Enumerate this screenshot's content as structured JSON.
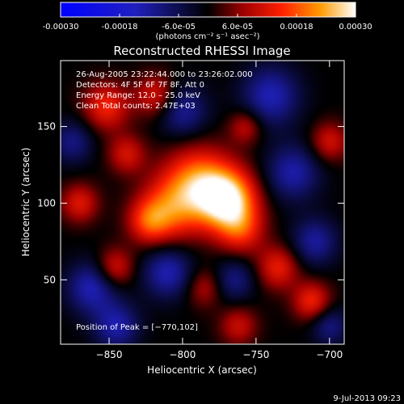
{
  "figure": {
    "footer_date": "9-Jul-2013 09:23"
  },
  "colorbar": {
    "min": -0.0003,
    "max": 0.0003,
    "tick_labels": [
      "-0.00030",
      "-0.00018",
      "-6.0e-05",
      "6.0e-05",
      "0.00018",
      "0.00030"
    ],
    "tick_values": [
      -0.0003,
      -0.00018,
      -6e-05,
      6e-05,
      0.00018,
      0.0003
    ],
    "unit_text": "(photons cm⁻² s⁻¹ asec⁻²)",
    "stops": [
      {
        "v": 0.0,
        "color": "#0000ff"
      },
      {
        "v": 0.25,
        "color": "#2020c0"
      },
      {
        "v": 0.5,
        "color": "#000000"
      },
      {
        "v": 0.62,
        "color": "#a00000"
      },
      {
        "v": 0.75,
        "color": "#ff2000"
      },
      {
        "v": 0.88,
        "color": "#ff9a00"
      },
      {
        "v": 1.0,
        "color": "#ffffff"
      }
    ]
  },
  "chart_data": {
    "type": "heatmap",
    "title": "Reconstructed RHESSI Image",
    "xlabel": "Heliocentric X (arcsec)",
    "ylabel": "Heliocentric Y (arcsec)",
    "xlim": [
      -883,
      -690
    ],
    "ylim": [
      8,
      193
    ],
    "x_ticks": [
      -850,
      -800,
      -750,
      -700
    ],
    "x_tick_labels": [
      "−850",
      "−800",
      "−750",
      "−700"
    ],
    "y_ticks": [
      50,
      100,
      150
    ],
    "y_tick_labels": [
      "50",
      "100",
      "150"
    ],
    "info_lines": [
      "26-Aug-2005 23:22:44.000 to 23:26:02.000",
      "Detectors: 4F 5F 6F 7F 8F, Att 0",
      "Energy Range: 12.0 – 25.0 keV",
      "Clean     Total counts: 2.47E+03"
    ],
    "peak_label": "Position of Peak = [−770,102]",
    "peak": [
      -770,
      102
    ],
    "sources": [
      {
        "x": -770,
        "y": 102,
        "amp": 0.0003,
        "r": 14
      },
      {
        "x": -790,
        "y": 115,
        "amp": 0.00018,
        "r": 16
      },
      {
        "x": -808,
        "y": 96,
        "amp": 0.00016,
        "r": 15
      },
      {
        "x": -823,
        "y": 88,
        "amp": 0.00013,
        "r": 10
      },
      {
        "x": -760,
        "y": 82,
        "amp": 0.00012,
        "r": 11
      },
      {
        "x": -852,
        "y": 163,
        "amp": 0.00014,
        "r": 11
      },
      {
        "x": -818,
        "y": 170,
        "amp": 0.00012,
        "r": 10
      },
      {
        "x": -838,
        "y": 132,
        "amp": 0.00011,
        "r": 9
      },
      {
        "x": -870,
        "y": 100,
        "amp": 0.00012,
        "r": 9
      },
      {
        "x": -846,
        "y": 58,
        "amp": 0.00012,
        "r": 9
      },
      {
        "x": -735,
        "y": 58,
        "amp": 0.00013,
        "r": 10
      },
      {
        "x": -712,
        "y": 36,
        "amp": 0.00014,
        "r": 9
      },
      {
        "x": -762,
        "y": 20,
        "amp": 0.0001,
        "r": 9
      },
      {
        "x": -700,
        "y": 140,
        "amp": 0.00011,
        "r": 9
      },
      {
        "x": -757,
        "y": 150,
        "amp": 0.0001,
        "r": 8
      },
      {
        "x": -785,
        "y": 45,
        "amp": 9e-05,
        "r": 9
      },
      {
        "x": -800,
        "y": 160,
        "amp": -0.00012,
        "r": 12
      },
      {
        "x": -740,
        "y": 170,
        "amp": -0.00014,
        "r": 14
      },
      {
        "x": -725,
        "y": 120,
        "amp": -0.00013,
        "r": 13
      },
      {
        "x": -862,
        "y": 45,
        "amp": -0.00014,
        "r": 12
      },
      {
        "x": -845,
        "y": 20,
        "amp": -0.00013,
        "r": 11
      },
      {
        "x": -810,
        "y": 55,
        "amp": -0.00014,
        "r": 12
      },
      {
        "x": -765,
        "y": 50,
        "amp": -0.0001,
        "r": 10
      },
      {
        "x": -710,
        "y": 75,
        "amp": -0.00012,
        "r": 11
      },
      {
        "x": -875,
        "y": 140,
        "amp": -0.0001,
        "r": 10
      },
      {
        "x": -700,
        "y": 20,
        "amp": -0.0001,
        "r": 9
      }
    ]
  }
}
